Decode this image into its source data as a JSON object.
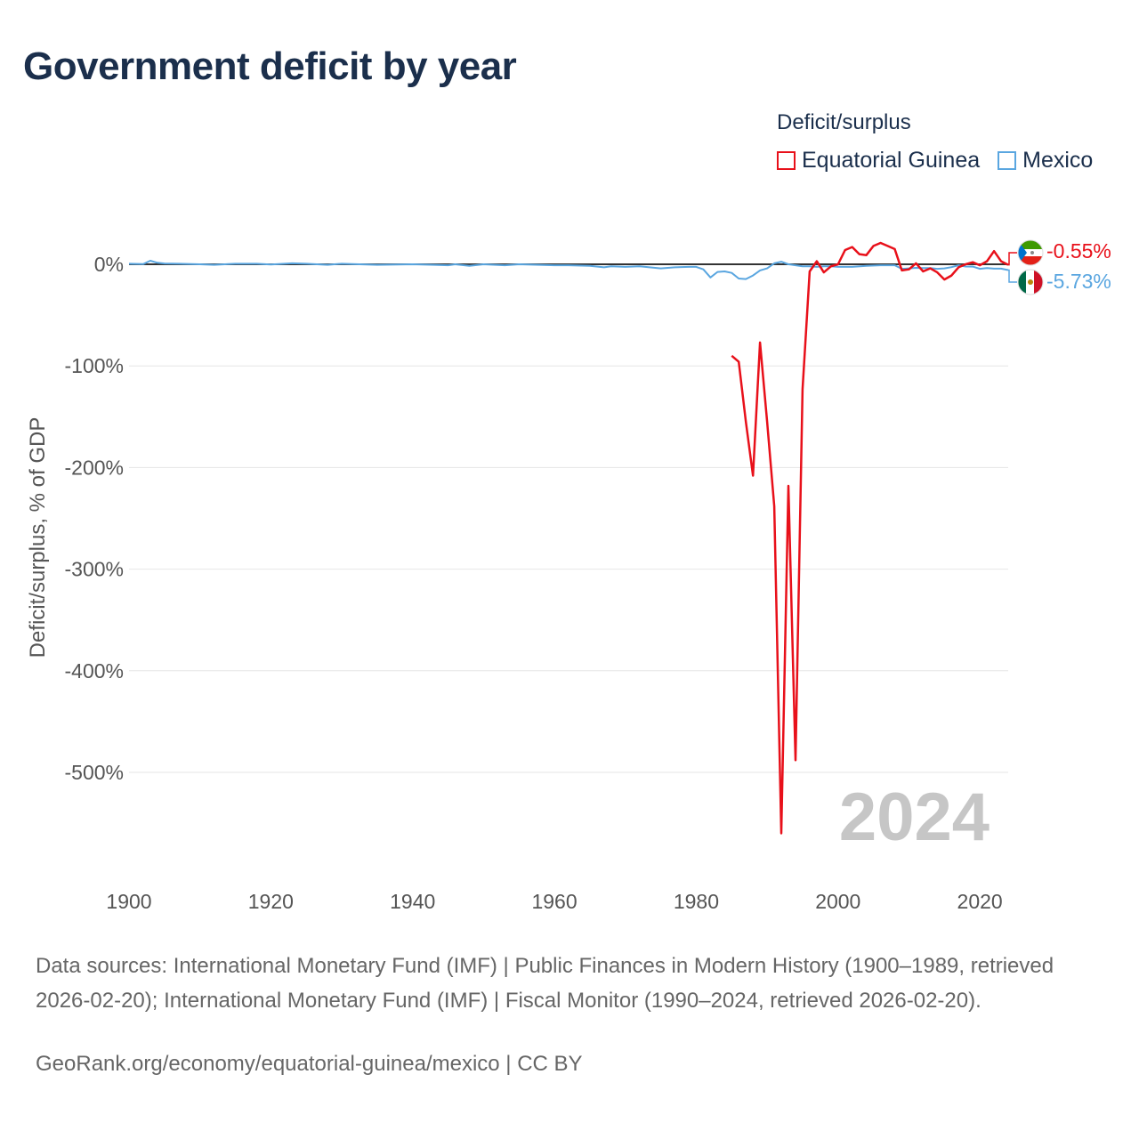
{
  "title": "Government deficit by year",
  "legend": {
    "title": "Deficit/surplus",
    "items": [
      {
        "label": "Equatorial Guinea",
        "color": "#e8101a"
      },
      {
        "label": "Mexico",
        "color": "#5aa6e0"
      }
    ]
  },
  "source_text": "Data sources: International Monetary Fund (IMF) | Public Finances in Modern History (1900–1989, retrieved 2026-02-20); International Monetary Fund (IMF) | Fiscal Monitor (1990–2024, retrieved 2026-02-20).",
  "credit_text": "GeoRank.org/economy/equatorial-guinea/mexico | CC BY",
  "chart_data": {
    "type": "line",
    "title": "Government deficit by year",
    "xlabel": "",
    "ylabel": "Deficit/surplus, % of GDP",
    "xlim": [
      1900,
      2024
    ],
    "ylim": [
      -600,
      0
    ],
    "x_ticks": [
      1900,
      1920,
      1940,
      1960,
      1980,
      2000,
      2020
    ],
    "x_tick_labels": [
      "1900",
      "1920",
      "1940",
      "1960",
      "1980",
      "2000",
      "2020"
    ],
    "y_ticks": [
      0,
      -100,
      -200,
      -300,
      -400,
      -500
    ],
    "y_tick_labels": [
      "0%",
      "-100%",
      "-200%",
      "-300%",
      "-400%",
      "-500%"
    ],
    "grid": true,
    "legend_position": "top-right",
    "year_watermark": "2024",
    "series": [
      {
        "name": "Equatorial Guinea",
        "color": "#e8101a",
        "end_label": "-0.55%",
        "points": [
          [
            1985,
            -90
          ],
          [
            1986,
            -96
          ],
          [
            1987,
            -155
          ],
          [
            1988,
            -208
          ],
          [
            1989,
            -77
          ],
          [
            1990,
            -155
          ],
          [
            1991,
            -238
          ],
          [
            1992,
            -560
          ],
          [
            1993,
            -218
          ],
          [
            1994,
            -488
          ],
          [
            1995,
            -123
          ],
          [
            1996,
            -7
          ],
          [
            1997,
            3
          ],
          [
            1998,
            -8
          ],
          [
            1999,
            -2
          ],
          [
            2000,
            0
          ],
          [
            2001,
            14
          ],
          [
            2002,
            17
          ],
          [
            2003,
            10
          ],
          [
            2004,
            9
          ],
          [
            2005,
            18
          ],
          [
            2006,
            21
          ],
          [
            2007,
            18
          ],
          [
            2008,
            15
          ],
          [
            2009,
            -6
          ],
          [
            2010,
            -5
          ],
          [
            2011,
            1
          ],
          [
            2012,
            -7
          ],
          [
            2013,
            -4
          ],
          [
            2014,
            -8
          ],
          [
            2015,
            -15
          ],
          [
            2016,
            -11
          ],
          [
            2017,
            -3
          ],
          [
            2018,
            0
          ],
          [
            2019,
            2
          ],
          [
            2020,
            -1
          ],
          [
            2021,
            3
          ],
          [
            2022,
            13
          ],
          [
            2023,
            3
          ],
          [
            2024,
            -0.55
          ]
        ]
      },
      {
        "name": "Mexico",
        "color": "#5aa6e0",
        "end_label": "-5.73%",
        "points": [
          [
            1900,
            0.5
          ],
          [
            1902,
            0.2
          ],
          [
            1903,
            3.5
          ],
          [
            1904,
            1.5
          ],
          [
            1905,
            0.8
          ],
          [
            1907,
            0.5
          ],
          [
            1910,
            0
          ],
          [
            1912,
            -0.5
          ],
          [
            1915,
            0.5
          ],
          [
            1918,
            0.5
          ],
          [
            1920,
            -0.3
          ],
          [
            1923,
            1
          ],
          [
            1925,
            0.5
          ],
          [
            1928,
            -0.5
          ],
          [
            1930,
            0.5
          ],
          [
            1935,
            -0.5
          ],
          [
            1940,
            0
          ],
          [
            1943,
            -0.5
          ],
          [
            1945,
            -1
          ],
          [
            1946,
            0
          ],
          [
            1948,
            -1.5
          ],
          [
            1950,
            0
          ],
          [
            1953,
            -1
          ],
          [
            1955,
            0
          ],
          [
            1960,
            -1
          ],
          [
            1962,
            -1
          ],
          [
            1965,
            -1.5
          ],
          [
            1967,
            -3
          ],
          [
            1968,
            -2
          ],
          [
            1970,
            -2.5
          ],
          [
            1972,
            -2
          ],
          [
            1975,
            -4
          ],
          [
            1977,
            -3
          ],
          [
            1979,
            -2.5
          ],
          [
            1980,
            -2.5
          ],
          [
            1981,
            -5
          ],
          [
            1982,
            -13
          ],
          [
            1983,
            -7.5
          ],
          [
            1984,
            -7
          ],
          [
            1985,
            -8.5
          ],
          [
            1986,
            -14
          ],
          [
            1987,
            -14.5
          ],
          [
            1988,
            -11
          ],
          [
            1989,
            -6
          ],
          [
            1990,
            -4
          ],
          [
            1991,
            1
          ],
          [
            1992,
            2.5
          ],
          [
            1993,
            0
          ],
          [
            1994,
            -1
          ],
          [
            1995,
            -2
          ],
          [
            1996,
            -2
          ],
          [
            1997,
            -2.5
          ],
          [
            1998,
            -2
          ],
          [
            1999,
            -2
          ],
          [
            2000,
            -2.5
          ],
          [
            2002,
            -2.5
          ],
          [
            2004,
            -1.5
          ],
          [
            2006,
            -1
          ],
          [
            2008,
            -1
          ],
          [
            2009,
            -4.5
          ],
          [
            2010,
            -4
          ],
          [
            2011,
            -3.5
          ],
          [
            2012,
            -3.7
          ],
          [
            2013,
            -3.7
          ],
          [
            2014,
            -4.5
          ],
          [
            2015,
            -4
          ],
          [
            2016,
            -2.8
          ],
          [
            2017,
            -1
          ],
          [
            2018,
            -2.2
          ],
          [
            2019,
            -2.3
          ],
          [
            2020,
            -4.5
          ],
          [
            2021,
            -3.8
          ],
          [
            2022,
            -4.3
          ],
          [
            2023,
            -4.3
          ],
          [
            2024,
            -5.73
          ]
        ]
      }
    ]
  }
}
